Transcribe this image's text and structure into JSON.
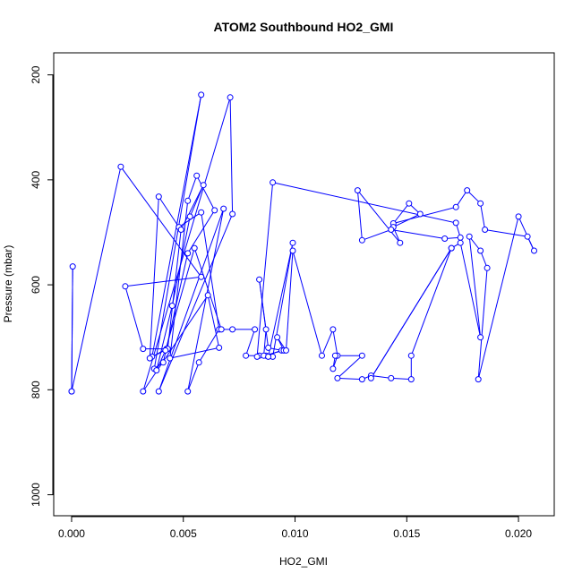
{
  "chart_data": {
    "type": "line",
    "title": "ATOM2 Southbound HO2_GMI",
    "xlabel": "HO2_GMI",
    "ylabel": "Pressure (mbar)",
    "xlim": [
      -0.0008,
      0.0216
    ],
    "ylim": [
      1040,
      158
    ],
    "y_reversed": true,
    "x_ticks": [
      0.0,
      0.005,
      0.01,
      0.015,
      0.02
    ],
    "x_tick_labels": [
      "0.000",
      "0.005",
      "0.010",
      "0.015",
      "0.020"
    ],
    "y_ticks": [
      200,
      400,
      600,
      800,
      1000
    ],
    "y_tick_labels": [
      "200",
      "400",
      "600",
      "800",
      "1000"
    ],
    "line_color": "#0000ff",
    "marker": "open-circle",
    "series": [
      {
        "points": [
          [
            0.0,
            803
          ],
          [
            5e-05,
            565
          ],
          [
            0.0,
            803
          ],
          [
            0.0022,
            375
          ],
          [
            0.0058,
            585
          ],
          [
            0.0024,
            603
          ],
          [
            0.0032,
            722
          ],
          [
            0.00425,
            722
          ],
          [
            0.0036,
            737
          ],
          [
            0.0058,
            238
          ],
          [
            0.0037,
            760
          ],
          [
            0.0041,
            748
          ],
          [
            0.0052,
            540
          ],
          [
            0.0064,
            458
          ],
          [
            0.0056,
            392
          ],
          [
            0.0052,
            440
          ],
          [
            0.0044,
            740
          ],
          [
            0.0066,
            720
          ],
          [
            0.0061,
            620
          ],
          [
            0.0032,
            803
          ],
          [
            0.0071,
            243
          ],
          [
            0.0072,
            465
          ],
          [
            0.0039,
            803
          ],
          [
            0.0068,
            455
          ],
          [
            0.0052,
            803
          ],
          [
            0.0057,
            748
          ],
          [
            0.0066,
            685
          ],
          [
            0.0058,
            462
          ],
          [
            0.0048,
            490
          ],
          [
            0.0039,
            432
          ],
          [
            0.0035,
            740
          ],
          [
            0.0043,
            722
          ],
          [
            0.0049,
            495
          ],
          [
            0.0059,
            410
          ],
          [
            0.0053,
            470
          ],
          [
            0.0045,
            640
          ],
          [
            0.0038,
            763
          ],
          [
            0.0042,
            725
          ],
          [
            0.0055,
            530
          ],
          [
            0.0067,
            685
          ],
          [
            0.0072,
            685
          ],
          [
            0.0082,
            685
          ],
          [
            0.0078,
            735
          ],
          [
            0.0084,
            735
          ],
          [
            0.0087,
            735
          ],
          [
            0.0094,
            725
          ],
          [
            0.0088,
            720
          ],
          [
            0.0084,
            590
          ],
          [
            0.0087,
            685
          ],
          [
            0.0086,
            735
          ],
          [
            0.0095,
            725
          ],
          [
            0.0092,
            700
          ],
          [
            0.0096,
            725
          ],
          [
            0.0099,
            535
          ],
          [
            0.0112,
            735
          ],
          [
            0.0117,
            685
          ],
          [
            0.0119,
            735
          ],
          [
            0.0117,
            760
          ],
          [
            0.0118,
            735
          ],
          [
            0.013,
            735
          ],
          [
            0.0119,
            778
          ],
          [
            0.013,
            780
          ],
          [
            0.0134,
            773
          ],
          [
            0.0143,
            778
          ],
          [
            0.0152,
            780
          ],
          [
            0.0152,
            735
          ],
          [
            0.017,
            530
          ],
          [
            0.0134,
            778
          ],
          [
            0.017,
            530
          ],
          [
            0.0174,
            520
          ],
          [
            0.0183,
            700
          ],
          [
            0.0178,
            508
          ],
          [
            0.0183,
            535
          ],
          [
            0.0186,
            568
          ],
          [
            0.0182,
            780
          ],
          [
            0.02,
            470
          ],
          [
            0.0207,
            535
          ],
          [
            0.0204,
            508
          ],
          [
            0.0185,
            495
          ],
          [
            0.0183,
            445
          ],
          [
            0.0177,
            420
          ],
          [
            0.0172,
            452
          ],
          [
            0.0144,
            483
          ],
          [
            0.0151,
            445
          ],
          [
            0.0156,
            465
          ],
          [
            0.0144,
            490
          ],
          [
            0.0147,
            520
          ],
          [
            0.0128,
            420
          ],
          [
            0.013,
            515
          ],
          [
            0.0143,
            495
          ],
          [
            0.0167,
            512
          ],
          [
            0.0174,
            510
          ],
          [
            0.0172,
            482
          ],
          [
            0.009,
            405
          ],
          [
            0.0083,
            737
          ],
          [
            0.009,
            737
          ],
          [
            0.0099,
            520
          ],
          [
            0.0088,
            737
          ]
        ]
      }
    ]
  }
}
